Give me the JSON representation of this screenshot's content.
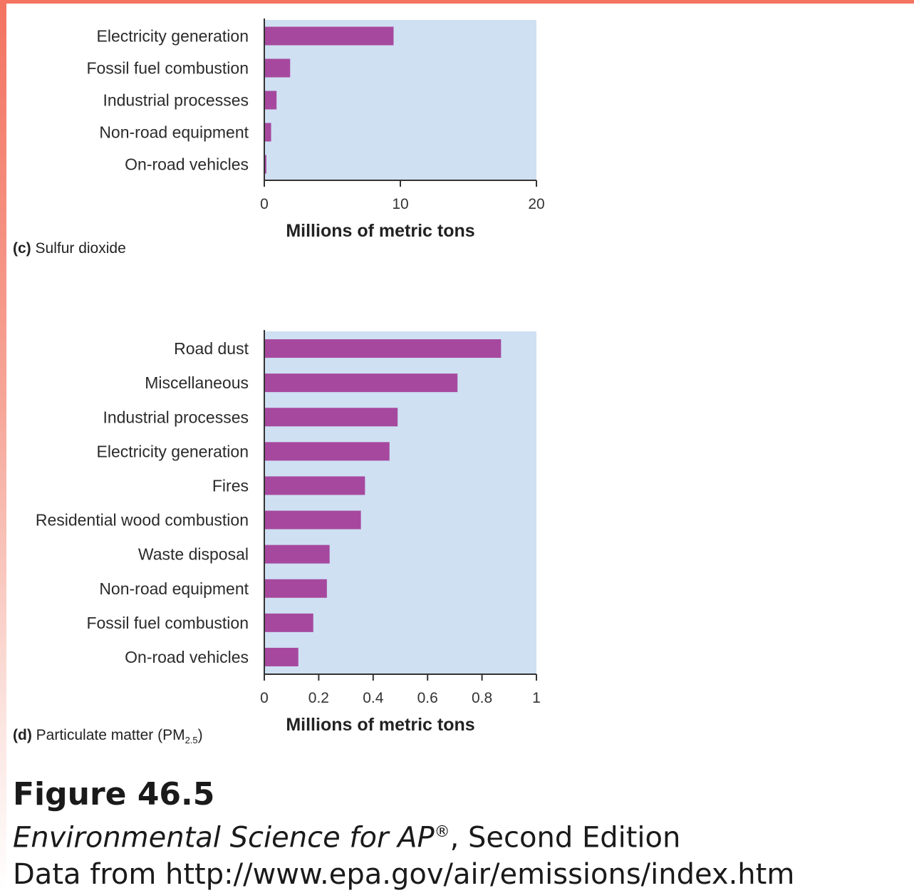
{
  "charts": [
    {
      "panel_letter": "(c)",
      "panel_name": "Sulfur dioxide",
      "panel_sub": "",
      "panel_suffix": ""
    },
    {
      "panel_letter": "(d)",
      "panel_name": "Particulate matter (PM",
      "panel_sub": "2.5",
      "panel_suffix": ")"
    }
  ],
  "chart_data": [
    {
      "type": "bar",
      "orientation": "horizontal",
      "categories": [
        "Electricity generation",
        "Fossil fuel combustion",
        "Industrial processes",
        "Non-road equipment",
        "On-road vehicles"
      ],
      "values": [
        9.5,
        1.9,
        0.9,
        0.5,
        0.15
      ],
      "xlim": [
        0,
        20
      ],
      "xticks": [
        "0",
        "10",
        "20"
      ],
      "xlabel": "Millions of metric tons",
      "grid": false
    },
    {
      "type": "bar",
      "orientation": "horizontal",
      "categories": [
        "Road dust",
        "Miscellaneous",
        "Industrial processes",
        "Electricity generation",
        "Fires",
        "Residential wood combustion",
        "Waste disposal",
        "Non-road equipment",
        "Fossil fuel combustion",
        "On-road vehicles"
      ],
      "values": [
        0.87,
        0.71,
        0.49,
        0.46,
        0.37,
        0.355,
        0.24,
        0.23,
        0.18,
        0.125
      ],
      "xlim": [
        0,
        1
      ],
      "xticks": [
        "0",
        "0.2",
        "0.4",
        "0.6",
        "0.8",
        "1"
      ],
      "xlabel": "Millions of metric tons",
      "grid": false
    }
  ],
  "colors": {
    "bar": "#a6499e",
    "plot_background": "#cfe0f3",
    "frame_accent": "#f47361"
  },
  "figure": {
    "title": "Figure 46.5",
    "book_title": "Environmental Science for AP",
    "book_mark": "®",
    "book_edition": ", Second Edition",
    "source": "Data from http://www.epa.gov/air/emissions/index.htm"
  }
}
